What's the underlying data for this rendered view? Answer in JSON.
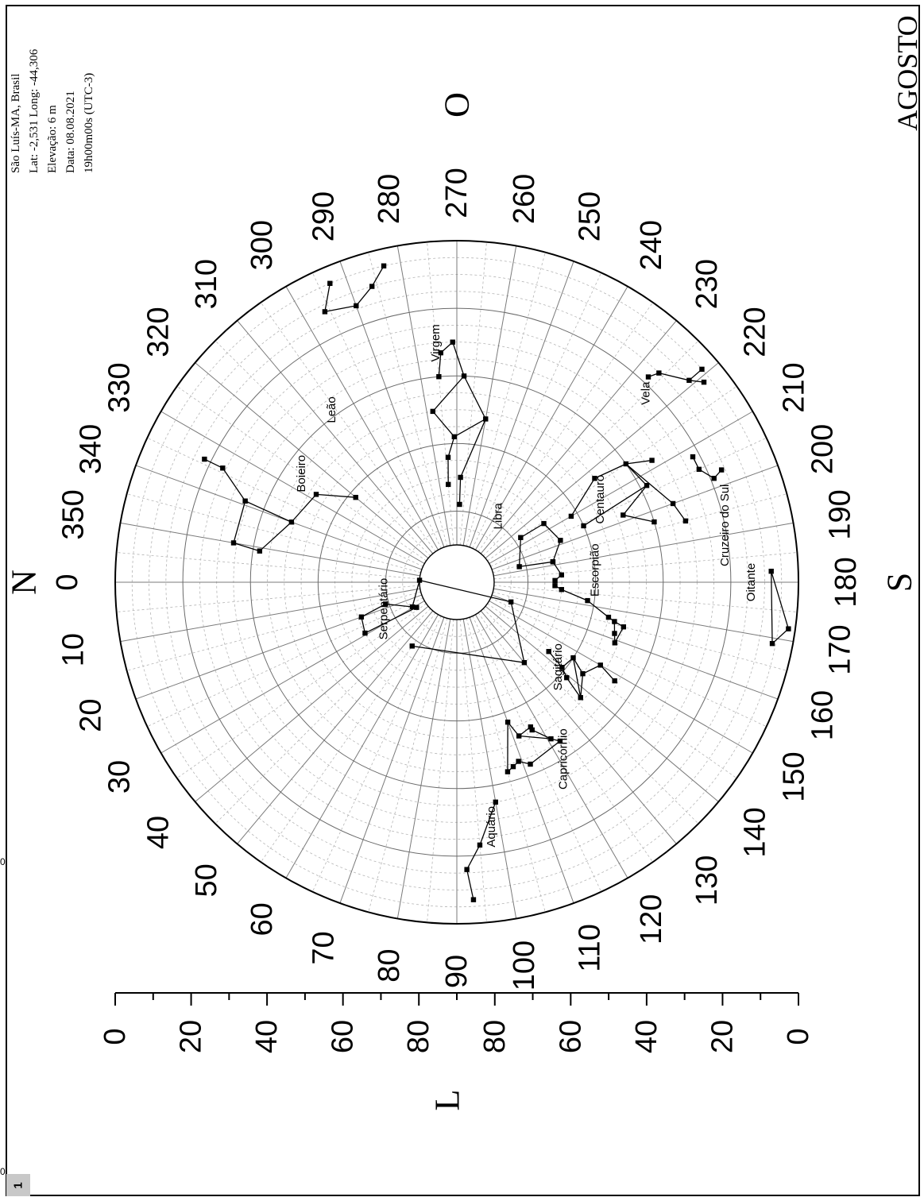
{
  "page": {
    "badge": "1",
    "edge_digit_upper": "0",
    "edge_digit_lower": "0"
  },
  "chart_data": {
    "type": "polar-sky-map",
    "grid": true,
    "info": {
      "location": "São Luís-MA, Brasil",
      "coords": "Lat: -2,531  Long: -44,306",
      "elevation": "Elevação: 6 m",
      "date": "Data: 08.08.2021",
      "time": "19h00m00s (UTC-3)"
    },
    "month": "AGOSTO",
    "cardinals": {
      "north": "N",
      "south": "S",
      "east": "L",
      "west": "O"
    },
    "azimuth_ticks": [
      0,
      10,
      20,
      30,
      40,
      50,
      60,
      70,
      80,
      90,
      100,
      110,
      120,
      130,
      140,
      150,
      160,
      170,
      180,
      190,
      200,
      210,
      220,
      230,
      240,
      250,
      260,
      270,
      280,
      290,
      300,
      310,
      320,
      330,
      340,
      350
    ],
    "altitude_scale": {
      "labels": [
        "0",
        "20",
        "40",
        "60",
        "80",
        "80",
        "60",
        "40",
        "20",
        "0"
      ],
      "values": [
        0,
        20,
        40,
        60,
        80,
        80,
        60,
        40,
        20,
        0
      ]
    },
    "altitude_rings": [
      0,
      20,
      40,
      60,
      80
    ],
    "constellations": [
      {
        "name": "Leão",
        "label_pos": {
          "az": 306,
          "alt": 38
        },
        "stars": [
          {
            "az": 293,
            "alt": 5
          },
          {
            "az": 296,
            "alt": 12
          },
          {
            "az": 290,
            "alt": 14
          },
          {
            "az": 286,
            "alt": 10
          },
          {
            "az": 283,
            "alt": 5
          }
        ],
        "lines": [
          [
            0,
            1
          ],
          [
            1,
            2
          ],
          [
            2,
            3
          ],
          [
            3,
            4
          ]
        ]
      },
      {
        "name": "Virgem",
        "label_pos": {
          "az": 275,
          "alt": 30
        },
        "stars": [
          {
            "az": 275,
            "alt": 40
          },
          {
            "az": 274,
            "alt": 33
          },
          {
            "az": 271,
            "alt": 30
          },
          {
            "az": 268,
            "alt": 40
          },
          {
            "az": 260,
            "alt": 52
          },
          {
            "az": 271,
            "alt": 58
          },
          {
            "az": 278,
            "alt": 50
          },
          {
            "az": 274,
            "alt": 64
          },
          {
            "az": 275,
            "alt": 72
          },
          {
            "az": 268,
            "alt": 70
          },
          {
            "az": 268,
            "alt": 78
          }
        ],
        "lines": [
          [
            0,
            1
          ],
          [
            1,
            2
          ],
          [
            2,
            3
          ],
          [
            3,
            4
          ],
          [
            4,
            5
          ],
          [
            5,
            6
          ],
          [
            3,
            6
          ],
          [
            5,
            7
          ],
          [
            7,
            8
          ],
          [
            4,
            9
          ],
          [
            9,
            10
          ]
        ]
      },
      {
        "name": "Boieiro",
        "label_pos": {
          "az": 325,
          "alt": 45
        },
        "stars": [
          {
            "az": 334,
            "alt": 18
          },
          {
            "az": 334,
            "alt": 24
          },
          {
            "az": 339,
            "alt": 34
          },
          {
            "az": 350,
            "alt": 34
          },
          {
            "az": 351,
            "alt": 42
          },
          {
            "az": 340,
            "alt": 49
          },
          {
            "az": 328,
            "alt": 52
          },
          {
            "az": 320,
            "alt": 62
          }
        ],
        "lines": [
          [
            0,
            1
          ],
          [
            1,
            2
          ],
          [
            2,
            3
          ],
          [
            3,
            4
          ],
          [
            4,
            5
          ],
          [
            5,
            2
          ],
          [
            5,
            6
          ],
          [
            6,
            7
          ]
        ]
      },
      {
        "name": "Libra",
        "label_pos": {
          "az": 238,
          "alt": 78
        },
        "stars": [
          {
            "az": 215,
            "alt": 78
          },
          {
            "az": 214,
            "alt": 70
          },
          {
            "az": 202,
            "alt": 68
          },
          {
            "az": 192,
            "alt": 72
          },
          {
            "az": 194,
            "alt": 82
          }
        ],
        "lines": [
          [
            0,
            1
          ],
          [
            1,
            2
          ],
          [
            2,
            3
          ],
          [
            3,
            4
          ],
          [
            0,
            4
          ]
        ]
      },
      {
        "name": "Escorpião",
        "label_pos": {
          "az": 185,
          "alt": 60
        },
        "stars": [
          {
            "az": 192,
            "alt": 72
          },
          {
            "az": 184,
            "alt": 70
          },
          {
            "az": 181,
            "alt": 72
          },
          {
            "az": 178,
            "alt": 72
          },
          {
            "az": 176,
            "alt": 70
          },
          {
            "az": 172,
            "alt": 62
          },
          {
            "az": 167,
            "alt": 55
          },
          {
            "az": 166,
            "alt": 53
          },
          {
            "az": 162,
            "alt": 52
          },
          {
            "az": 159,
            "alt": 51
          },
          {
            "az": 165,
            "alt": 50
          }
        ],
        "lines": [
          [
            0,
            1
          ],
          [
            1,
            2
          ],
          [
            2,
            3
          ],
          [
            3,
            4
          ],
          [
            4,
            5
          ],
          [
            5,
            6
          ],
          [
            6,
            7
          ],
          [
            7,
            8
          ],
          [
            8,
            9
          ],
          [
            9,
            10
          ],
          [
            7,
            10
          ]
        ]
      },
      {
        "name": "Serpentário",
        "label_pos": {
          "az": 20,
          "alt": 78
        },
        "stars": [
          {
            "az": 29,
            "alt": 86
          },
          {
            "az": 17,
            "alt": 79
          },
          {
            "az": 20,
            "alt": 71
          },
          {
            "az": 29,
            "alt": 70
          },
          {
            "az": 357,
            "alt": 90
          },
          {
            "az": 32,
            "alt": 87
          },
          {
            "az": 160,
            "alt": 84
          },
          {
            "az": 130,
            "alt": 70
          },
          {
            "az": 55,
            "alt": 78
          }
        ],
        "lines": [
          [
            0,
            1
          ],
          [
            1,
            2
          ],
          [
            2,
            3
          ],
          [
            0,
            4
          ],
          [
            4,
            6
          ],
          [
            6,
            7
          ],
          [
            7,
            8
          ],
          [
            3,
            5
          ]
        ]
      },
      {
        "name": "Sagitário",
        "label_pos": {
          "az": 140,
          "alt": 62
        },
        "stars": [
          {
            "az": 143,
            "alt": 67
          },
          {
            "az": 141,
            "alt": 61
          },
          {
            "az": 147,
            "alt": 60
          },
          {
            "az": 144,
            "alt": 55
          },
          {
            "az": 150,
            "alt": 52
          },
          {
            "az": 148,
            "alt": 46
          },
          {
            "az": 139,
            "alt": 58
          },
          {
            "az": 137,
            "alt": 51
          }
        ],
        "lines": [
          [
            0,
            1
          ],
          [
            1,
            2
          ],
          [
            2,
            3
          ],
          [
            3,
            4
          ],
          [
            4,
            5
          ],
          [
            1,
            6
          ],
          [
            6,
            7
          ],
          [
            2,
            7
          ],
          [
            3,
            7
          ]
        ]
      },
      {
        "name": "Capricórnio",
        "label_pos": {
          "az": 121,
          "alt": 40
        },
        "stars": [
          {
            "az": 112,
            "alt": 52
          },
          {
            "az": 121,
            "alt": 47
          },
          {
            "az": 123,
            "alt": 45
          },
          {
            "az": 112,
            "alt": 43
          },
          {
            "az": 109,
            "alt": 45
          },
          {
            "az": 107,
            "alt": 44
          },
          {
            "az": 105,
            "alt": 43
          },
          {
            "az": 110,
            "alt": 57
          },
          {
            "az": 117,
            "alt": 53
          },
          {
            "az": 117,
            "alt": 52
          }
        ],
        "lines": [
          [
            0,
            1
          ],
          [
            1,
            2
          ],
          [
            2,
            3
          ],
          [
            3,
            4
          ],
          [
            4,
            5
          ],
          [
            5,
            6
          ],
          [
            6,
            7
          ],
          [
            0,
            7
          ],
          [
            0,
            8
          ],
          [
            8,
            9
          ],
          [
            9,
            1
          ]
        ]
      },
      {
        "name": "Aquário",
        "label_pos": {
          "az": 98,
          "alt": 28
        },
        "stars": [
          {
            "az": 92,
            "alt": 16
          },
          {
            "az": 95,
            "alt": 23
          },
          {
            "az": 100,
            "alt": 35
          },
          {
            "az": 93,
            "alt": 7
          }
        ],
        "lines": [
          [
            0,
            1
          ],
          [
            1,
            2
          ],
          [
            0,
            3
          ]
        ]
      },
      {
        "name": "Centauro",
        "label_pos": {
          "az": 210,
          "alt": 52
        },
        "stars": [
          {
            "az": 210,
            "alt": 62
          },
          {
            "az": 217,
            "alt": 50
          },
          {
            "az": 215,
            "alt": 40
          },
          {
            "az": 212,
            "alt": 33
          },
          {
            "az": 207,
            "alt": 38
          },
          {
            "az": 202,
            "alt": 48
          },
          {
            "az": 197,
            "alt": 40
          },
          {
            "az": 204,
            "alt": 60
          },
          {
            "az": 200,
            "alt": 33
          },
          {
            "az": 195,
            "alt": 31
          }
        ],
        "lines": [
          [
            0,
            1
          ],
          [
            1,
            2
          ],
          [
            2,
            3
          ],
          [
            2,
            4
          ],
          [
            4,
            5
          ],
          [
            5,
            6
          ],
          [
            4,
            7
          ],
          [
            2,
            8
          ],
          [
            8,
            9
          ]
        ]
      },
      {
        "name": "Vela",
        "label_pos": {
          "az": 225,
          "alt": 22
        },
        "stars": [
          {
            "az": 227,
            "alt": 18
          },
          {
            "az": 226,
            "alt": 15
          },
          {
            "az": 221,
            "alt": 10
          },
          {
            "az": 219,
            "alt": 7
          },
          {
            "az": 221,
            "alt": 5
          }
        ],
        "lines": [
          [
            0,
            1
          ],
          [
            1,
            2
          ],
          [
            2,
            3
          ],
          [
            2,
            4
          ]
        ]
      },
      {
        "name": "Cruzeiro do Sul",
        "label_pos": {
          "az": 192,
          "alt": 20
        },
        "stars": [
          {
            "az": 205,
            "alt": 22
          },
          {
            "az": 202,
            "alt": 19
          },
          {
            "az": 203,
            "alt": 16
          },
          {
            "az": 208,
            "alt": 22
          }
        ],
        "lines": [
          [
            0,
            1
          ],
          [
            1,
            2
          ],
          [
            0,
            3
          ]
        ]
      },
      {
        "name": "Oitante",
        "label_pos": {
          "az": 180,
          "alt": 14
        },
        "stars": [
          {
            "az": 182,
            "alt": 8
          },
          {
            "az": 172,
            "alt": 2
          },
          {
            "az": 169,
            "alt": 6
          }
        ],
        "lines": [
          [
            0,
            1
          ],
          [
            1,
            2
          ],
          [
            0,
            2
          ]
        ]
      }
    ]
  }
}
